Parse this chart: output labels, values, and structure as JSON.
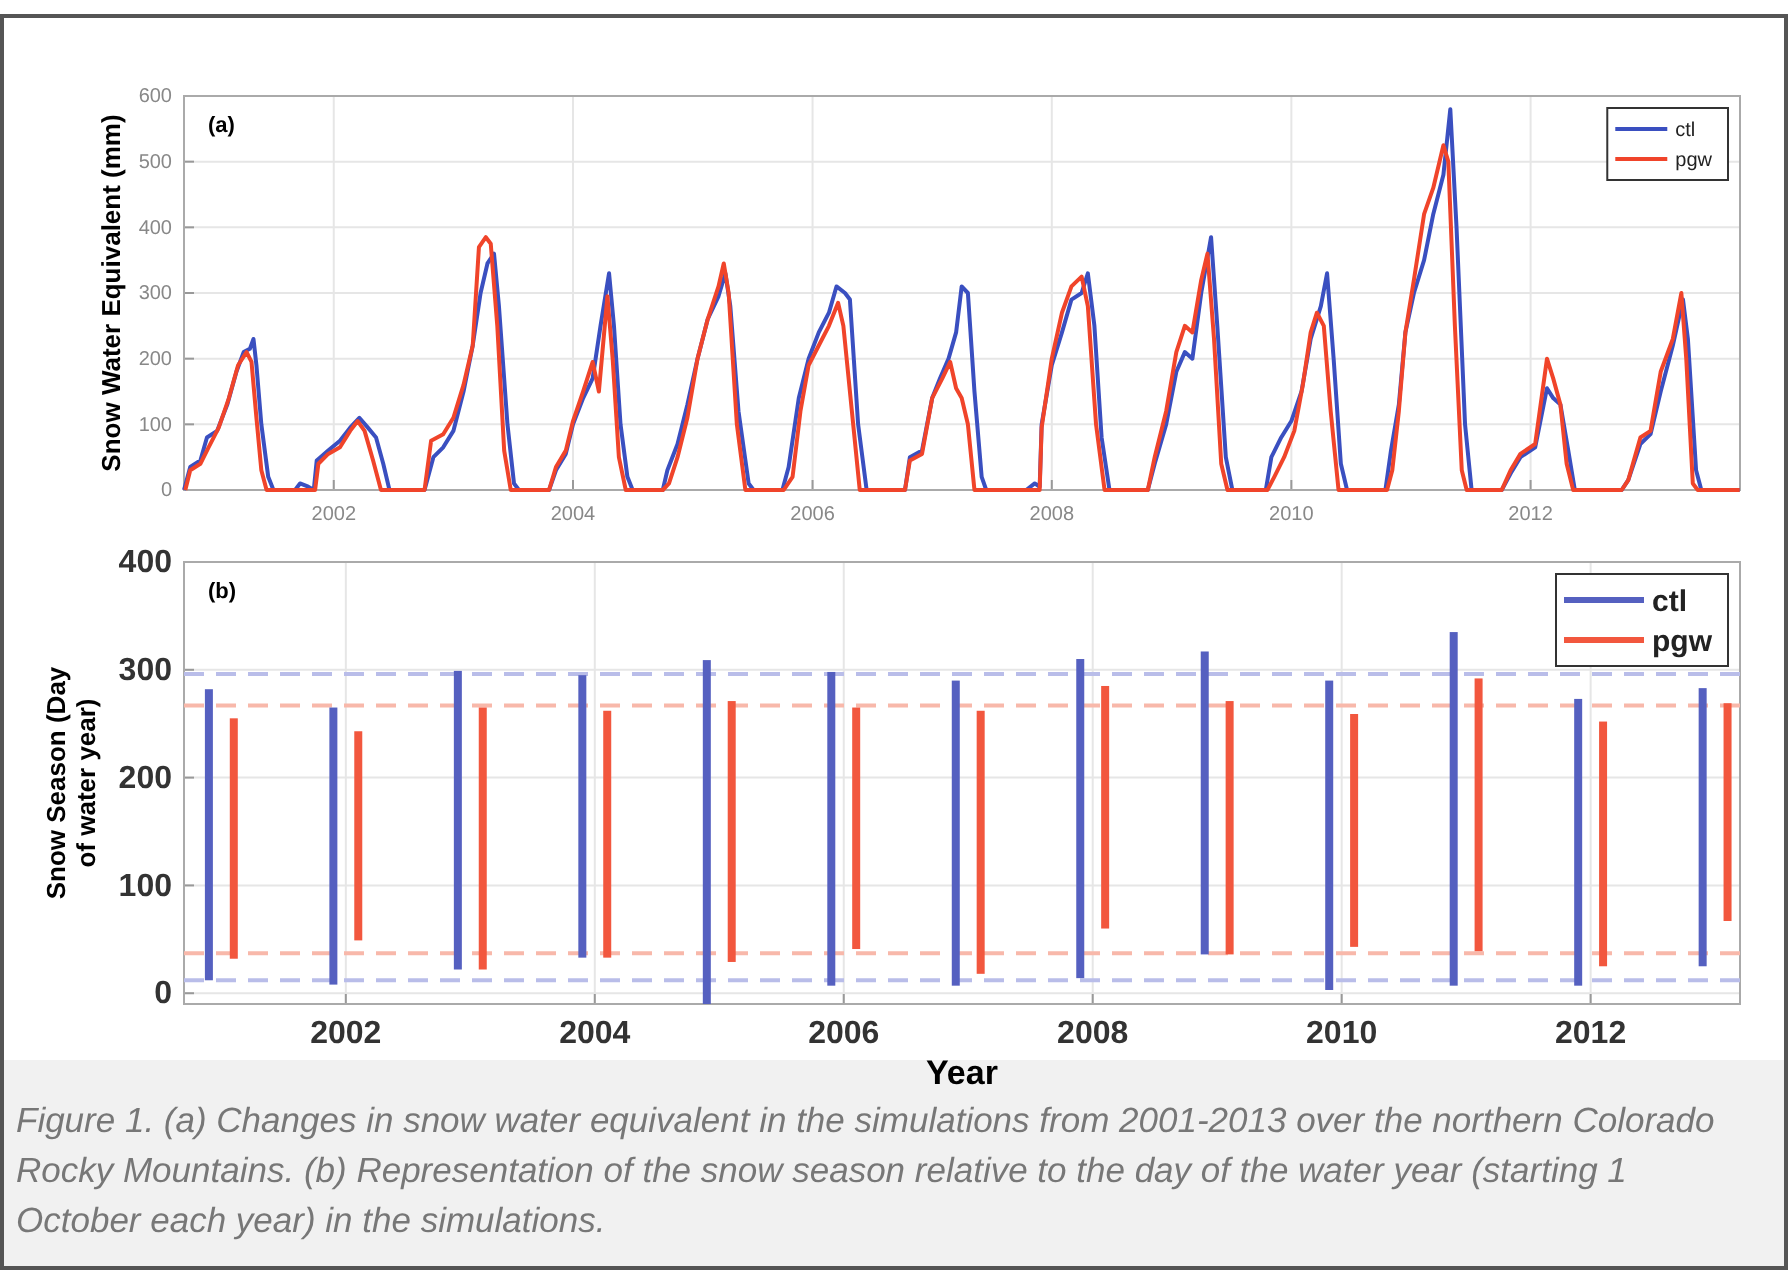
{
  "chart_data": [
    {
      "type": "line",
      "annotations": [
        "(a)"
      ],
      "ylabel": "Snow Water Equivalent (mm)",
      "xlim": [
        "2000-10-01",
        "2013-10-01"
      ],
      "xticks": [
        "2002",
        "2004",
        "2006",
        "2008",
        "2010",
        "2012"
      ],
      "ylim": [
        0,
        600
      ],
      "yticks": [
        0,
        100,
        200,
        300,
        400,
        500,
        600
      ],
      "grid": true,
      "legend": "top right",
      "series": [
        {
          "name": "ctl",
          "color": "#3a4fc0",
          "x": [
            "2000-10-01",
            "2000-10-20",
            "2000-11-20",
            "2000-12-10",
            "2001-01-10",
            "2001-02-10",
            "2001-03-10",
            "2001-04-01",
            "2001-04-20",
            "2001-05-01",
            "2001-05-10",
            "2001-05-25",
            "2001-06-15",
            "2001-07-01",
            "2001-09-05",
            "2001-09-20",
            "2001-10-15",
            "2001-11-01",
            "2001-11-10",
            "2001-12-15",
            "2002-01-20",
            "2002-02-20",
            "2002-03-20",
            "2002-04-15",
            "2002-05-10",
            "2002-06-01",
            "2002-06-20",
            "2002-10-05",
            "2002-11-01",
            "2002-12-01",
            "2003-01-01",
            "2003-02-01",
            "2003-03-01",
            "2003-03-25",
            "2003-04-15",
            "2003-05-05",
            "2003-05-20",
            "2003-06-15",
            "2003-07-05",
            "2003-07-20",
            "2003-10-20",
            "2003-11-10",
            "2003-12-10",
            "2004-01-01",
            "2004-02-01",
            "2004-03-01",
            "2004-03-25",
            "2004-04-20",
            "2004-05-05",
            "2004-05-25",
            "2004-06-15",
            "2004-07-01",
            "2004-10-01",
            "2004-10-15",
            "2004-11-15",
            "2004-12-15",
            "2005-01-15",
            "2005-02-15",
            "2005-03-20",
            "2005-04-10",
            "2005-04-25",
            "2005-05-20",
            "2005-06-20",
            "2005-07-05",
            "2005-10-01",
            "2005-10-20",
            "2005-11-20",
            "2005-12-20",
            "2006-01-20",
            "2006-02-20",
            "2006-03-15",
            "2006-04-10",
            "2006-04-25",
            "2006-05-20",
            "2006-06-15",
            "2006-10-10",
            "2006-10-25",
            "2006-12-01",
            "2007-01-01",
            "2007-01-25",
            "2007-02-20",
            "2007-03-15",
            "2007-04-01",
            "2007-04-20",
            "2007-05-10",
            "2007-06-01",
            "2007-06-15",
            "2007-10-15",
            "2007-11-10",
            "2007-11-25",
            "2007-12-01",
            "2008-01-01",
            "2008-02-01",
            "2008-03-01",
            "2008-04-01",
            "2008-04-20",
            "2008-05-10",
            "2008-06-01",
            "2008-06-25",
            "2008-10-20",
            "2008-11-10",
            "2008-12-15",
            "2009-01-15",
            "2009-02-10",
            "2009-03-05",
            "2009-04-01",
            "2009-05-01",
            "2009-05-20",
            "2009-06-15",
            "2009-07-05",
            "2009-10-15",
            "2009-11-01",
            "2009-12-01",
            "2010-01-01",
            "2010-02-01",
            "2010-03-01",
            "2010-04-01",
            "2010-04-20",
            "2010-05-10",
            "2010-06-01",
            "2010-06-20",
            "2010-10-15",
            "2010-11-01",
            "2010-11-25",
            "2010-12-15",
            "2011-01-10",
            "2011-02-10",
            "2011-03-10",
            "2011-04-10",
            "2011-05-01",
            "2011-05-20",
            "2011-06-15",
            "2011-07-05",
            "2011-10-05",
            "2011-11-01",
            "2011-12-01",
            "2012-01-15",
            "2012-02-20",
            "2012-03-10",
            "2012-04-01",
            "2012-04-25",
            "2012-05-15",
            "2012-10-05",
            "2012-10-25",
            "2012-12-01",
            "2013-01-01",
            "2013-02-01",
            "2013-03-10",
            "2013-04-10",
            "2013-04-25",
            "2013-05-20",
            "2013-06-05",
            "2013-09-30"
          ],
          "values": [
            0,
            35,
            45,
            80,
            90,
            130,
            180,
            210,
            215,
            230,
            190,
            100,
            20,
            0,
            0,
            10,
            5,
            0,
            45,
            60,
            75,
            95,
            110,
            95,
            80,
            40,
            0,
            0,
            50,
            65,
            90,
            150,
            220,
            300,
            345,
            360,
            280,
            100,
            10,
            0,
            0,
            30,
            55,
            100,
            140,
            170,
            250,
            330,
            250,
            100,
            20,
            0,
            0,
            30,
            70,
            130,
            200,
            260,
            295,
            330,
            280,
            120,
            10,
            0,
            0,
            35,
            140,
            200,
            240,
            270,
            310,
            300,
            290,
            100,
            0,
            0,
            50,
            60,
            140,
            170,
            200,
            240,
            310,
            300,
            150,
            20,
            0,
            0,
            10,
            5,
            100,
            190,
            240,
            290,
            300,
            330,
            250,
            80,
            0,
            0,
            40,
            100,
            180,
            210,
            200,
            300,
            385,
            250,
            50,
            0,
            0,
            50,
            80,
            105,
            150,
            230,
            280,
            330,
            200,
            40,
            0,
            0,
            60,
            130,
            240,
            300,
            350,
            420,
            480,
            580,
            400,
            100,
            0,
            0,
            25,
            50,
            65,
            155,
            140,
            130,
            60,
            0,
            0,
            15,
            70,
            85,
            150,
            220,
            290,
            230,
            30,
            0,
            0
          ]
        },
        {
          "name": "pgw",
          "color": "#f0442a",
          "x": [
            "2000-10-05",
            "2000-10-20",
            "2000-11-20",
            "2000-12-15",
            "2001-01-15",
            "2001-02-15",
            "2001-03-15",
            "2001-04-10",
            "2001-04-25",
            "2001-05-10",
            "2001-05-25",
            "2001-06-10",
            "2001-11-05",
            "2001-11-15",
            "2001-12-15",
            "2002-01-20",
            "2002-02-20",
            "2002-03-15",
            "2002-04-05",
            "2002-05-01",
            "2002-05-25",
            "2002-10-05",
            "2002-10-25",
            "2002-12-01",
            "2003-01-01",
            "2003-02-01",
            "2003-03-01",
            "2003-03-20",
            "2003-04-10",
            "2003-04-25",
            "2003-05-15",
            "2003-06-05",
            "2003-06-25",
            "2003-10-20",
            "2003-11-10",
            "2003-12-10",
            "2004-01-01",
            "2004-02-01",
            "2004-03-01",
            "2004-03-20",
            "2004-04-15",
            "2004-05-01",
            "2004-05-20",
            "2004-06-10",
            "2004-10-01",
            "2004-10-20",
            "2004-11-15",
            "2004-12-15",
            "2005-01-15",
            "2005-02-15",
            "2005-03-20",
            "2005-04-05",
            "2005-04-20",
            "2005-05-15",
            "2005-06-10",
            "2005-10-05",
            "2005-11-01",
            "2005-11-25",
            "2005-12-20",
            "2006-01-20",
            "2006-02-20",
            "2006-03-20",
            "2006-04-05",
            "2006-05-01",
            "2006-05-25",
            "2006-10-10",
            "2006-10-25",
            "2006-12-01",
            "2007-01-01",
            "2007-02-01",
            "2007-02-25",
            "2007-03-15",
            "2007-04-01",
            "2007-04-20",
            "2007-05-10",
            "2007-11-25",
            "2007-12-01",
            "2008-01-01",
            "2008-02-01",
            "2008-03-01",
            "2008-04-01",
            "2008-04-20",
            "2008-05-15",
            "2008-06-10",
            "2008-10-20",
            "2008-11-10",
            "2008-12-15",
            "2009-01-15",
            "2009-02-10",
            "2009-03-05",
            "2009-04-01",
            "2009-04-20",
            "2009-05-10",
            "2009-06-01",
            "2009-06-20",
            "2009-10-20",
            "2009-11-10",
            "2009-12-10",
            "2010-01-10",
            "2010-02-05",
            "2010-03-01",
            "2010-03-20",
            "2010-04-10",
            "2010-05-01",
            "2010-05-25",
            "2010-10-20",
            "2010-11-05",
            "2010-11-25",
            "2010-12-15",
            "2011-01-10",
            "2011-02-10",
            "2011-03-10",
            "2011-04-10",
            "2011-04-25",
            "2011-05-15",
            "2011-06-05",
            "2011-06-20",
            "2011-10-05",
            "2011-11-01",
            "2011-12-01",
            "2012-01-15",
            "2012-02-20",
            "2012-03-10",
            "2012-04-01",
            "2012-04-20",
            "2012-05-10",
            "2012-10-05",
            "2012-10-25",
            "2012-12-01",
            "2013-01-01",
            "2013-02-01",
            "2013-03-10",
            "2013-04-05",
            "2013-04-20",
            "2013-05-10",
            "2013-05-25",
            "2013-09-30"
          ],
          "values": [
            0,
            30,
            40,
            65,
            95,
            140,
            190,
            210,
            195,
            110,
            30,
            0,
            0,
            40,
            55,
            65,
            90,
            105,
            90,
            45,
            0,
            0,
            75,
            85,
            110,
            160,
            220,
            370,
            385,
            375,
            250,
            60,
            0,
            0,
            35,
            60,
            105,
            150,
            195,
            150,
            295,
            200,
            50,
            0,
            0,
            10,
            50,
            110,
            200,
            260,
            310,
            345,
            300,
            100,
            0,
            0,
            20,
            120,
            190,
            220,
            250,
            285,
            250,
            120,
            0,
            0,
            45,
            55,
            140,
            170,
            195,
            155,
            140,
            100,
            0,
            0,
            95,
            200,
            270,
            310,
            325,
            280,
            100,
            0,
            0,
            50,
            120,
            210,
            250,
            240,
            320,
            360,
            230,
            40,
            0,
            0,
            20,
            50,
            90,
            160,
            240,
            270,
            250,
            120,
            0,
            0,
            30,
            120,
            240,
            320,
            420,
            460,
            525,
            500,
            250,
            30,
            0,
            0,
            30,
            55,
            70,
            200,
            170,
            130,
            40,
            0,
            0,
            15,
            80,
            90,
            180,
            230,
            300,
            200,
            10,
            0,
            0
          ]
        }
      ]
    },
    {
      "type": "bar",
      "annotations": [
        "(b)",
        "Figure 1. (a) Changes in snow water equivalent in the simulations from 2001-2013 over the northern Colorado Rocky Mountains. (b) Representation of the snow season relative to the day of the water year (starting 1 October each year) in the simulations."
      ],
      "xlabel": "Year",
      "ylabel": "Snow Season (Day of water year)",
      "xlim": [
        2000.7,
        2013.2
      ],
      "xticks": [
        2002,
        2004,
        2006,
        2008,
        2010,
        2012
      ],
      "ylim": [
        -10,
        400
      ],
      "yticks": [
        0,
        100,
        200,
        300,
        400
      ],
      "grid": true,
      "legend": "top right",
      "ref_lines": [
        {
          "axis": "y",
          "value": 296,
          "color": "#b9bde9",
          "line_style": "dashed"
        },
        {
          "axis": "y",
          "value": 267,
          "color": "#f8b8aa",
          "line_style": "dashed"
        },
        {
          "axis": "y",
          "value": 37,
          "color": "#f8b8aa",
          "line_style": "dashed"
        },
        {
          "axis": "y",
          "value": 12,
          "color": "#b9bde9",
          "line_style": "dashed"
        }
      ],
      "series": [
        {
          "name": "ctl",
          "color": "#5560c0",
          "x": [
            2000.9,
            2001.9,
            2002.9,
            2003.9,
            2004.9,
            2005.9,
            2006.9,
            2007.9,
            2008.9,
            2009.9,
            2010.9,
            2011.9,
            2012.9
          ],
          "base": [
            12,
            8,
            22,
            33,
            -10,
            7,
            7,
            14,
            36,
            3,
            7,
            7,
            25
          ],
          "values": [
            270,
            257,
            277,
            262,
            319,
            291,
            283,
            296,
            281,
            287,
            328,
            266,
            258
          ]
        },
        {
          "name": "pgw",
          "color": "#f2573e",
          "x": [
            2001.1,
            2002.1,
            2003.1,
            2004.1,
            2005.1,
            2006.1,
            2007.1,
            2008.1,
            2009.1,
            2010.1,
            2011.1,
            2012.1,
            2013.1
          ],
          "base": [
            32,
            49,
            22,
            33,
            29,
            41,
            18,
            60,
            36,
            43,
            39,
            25,
            67
          ],
          "values": [
            223,
            194,
            243,
            229,
            242,
            224,
            244,
            225,
            235,
            216,
            253,
            227,
            202
          ]
        }
      ]
    }
  ]
}
